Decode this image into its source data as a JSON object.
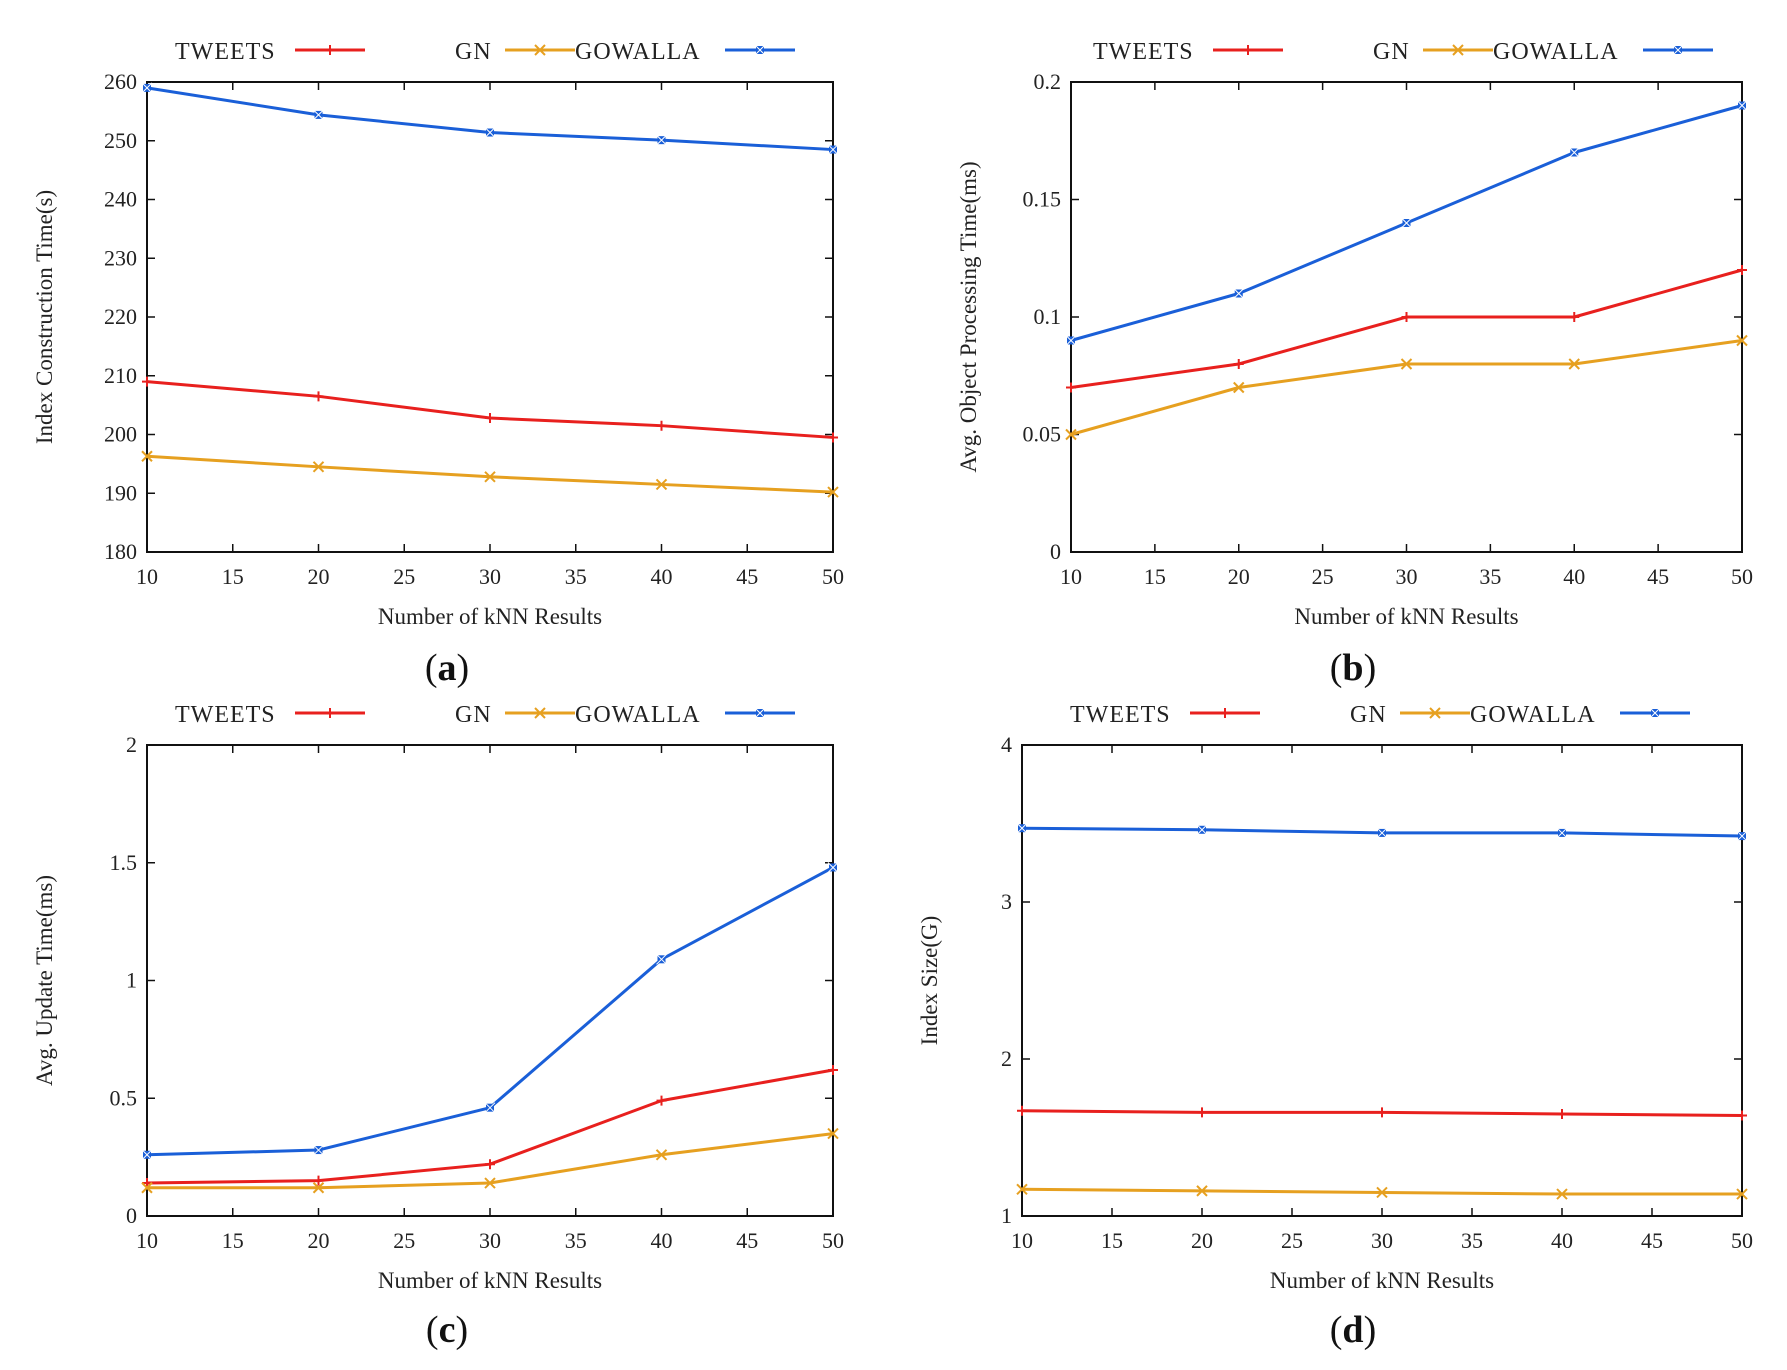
{
  "colors": {
    "TWEETS": "#e8201e",
    "GN": "#e6a020",
    "GOWALLA": "#1a5fd8"
  },
  "chart_data": [
    {
      "type": "line",
      "panel": "a",
      "xlabel": "Number of kNN Results",
      "ylabel": "Index Construction Time(s)",
      "x": [
        10,
        20,
        30,
        40,
        50
      ],
      "xlim": [
        10,
        50
      ],
      "xticks": [
        10,
        15,
        20,
        25,
        30,
        35,
        40,
        45,
        50
      ],
      "xtick_labels": [
        "10",
        "15",
        "20",
        "25",
        "30",
        "35",
        "40",
        "45",
        "50"
      ],
      "ylim": [
        180,
        260
      ],
      "yticks": [
        180,
        190,
        200,
        210,
        220,
        230,
        240,
        250,
        260
      ],
      "ytick_labels": [
        "180",
        "190",
        "200",
        "210",
        "220",
        "230",
        "240",
        "250",
        "260"
      ],
      "legend": "top-outside",
      "series": [
        {
          "name": "TWEETS",
          "values": [
            209,
            206.5,
            202.8,
            201.5,
            199.5
          ]
        },
        {
          "name": "GN",
          "values": [
            196.3,
            194.5,
            192.8,
            191.5,
            190.2
          ]
        },
        {
          "name": "GOWALLA",
          "values": [
            259,
            254.4,
            251.4,
            250.1,
            248.5
          ]
        }
      ]
    },
    {
      "type": "line",
      "panel": "b",
      "xlabel": "Number of kNN Results",
      "ylabel": "Avg. Object Processing Time(ms)",
      "x": [
        10,
        20,
        30,
        40,
        50
      ],
      "xlim": [
        10,
        50
      ],
      "xticks": [
        10,
        15,
        20,
        25,
        30,
        35,
        40,
        45,
        50
      ],
      "xtick_labels": [
        "10",
        "15",
        "20",
        "25",
        "30",
        "35",
        "40",
        "45",
        "50"
      ],
      "ylim": [
        0,
        0.2
      ],
      "yticks": [
        0,
        0.05,
        0.1,
        0.15,
        0.2
      ],
      "ytick_labels": [
        "0",
        "0.05",
        "0.1",
        "0.15",
        "0.2"
      ],
      "legend": "top-outside",
      "series": [
        {
          "name": "TWEETS",
          "values": [
            0.07,
            0.08,
            0.1,
            0.1,
            0.12
          ]
        },
        {
          "name": "GN",
          "values": [
            0.05,
            0.07,
            0.08,
            0.08,
            0.09
          ]
        },
        {
          "name": "GOWALLA",
          "values": [
            0.09,
            0.11,
            0.14,
            0.17,
            0.19
          ]
        }
      ]
    },
    {
      "type": "line",
      "panel": "c",
      "xlabel": "Number of kNN Results",
      "ylabel": "Avg. Update Time(ms)",
      "x": [
        10,
        20,
        30,
        40,
        50
      ],
      "xlim": [
        10,
        50
      ],
      "xticks": [
        10,
        15,
        20,
        25,
        30,
        35,
        40,
        45,
        50
      ],
      "xtick_labels": [
        "10",
        "15",
        "20",
        "25",
        "30",
        "35",
        "40",
        "45",
        "50"
      ],
      "ylim": [
        0,
        2
      ],
      "yticks": [
        0,
        0.5,
        1,
        1.5,
        2
      ],
      "ytick_labels": [
        "0",
        "0.5",
        "1",
        "1.5",
        "2"
      ],
      "legend": "top-outside",
      "series": [
        {
          "name": "TWEETS",
          "values": [
            0.14,
            0.15,
            0.22,
            0.49,
            0.62
          ]
        },
        {
          "name": "GN",
          "values": [
            0.12,
            0.12,
            0.14,
            0.26,
            0.35
          ]
        },
        {
          "name": "GOWALLA",
          "values": [
            0.26,
            0.28,
            0.46,
            1.09,
            1.48
          ]
        }
      ]
    },
    {
      "type": "line",
      "panel": "d",
      "xlabel": "Number of kNN Results",
      "ylabel": "Index Size(G)",
      "x": [
        10,
        20,
        30,
        40,
        50
      ],
      "xlim": [
        10,
        50
      ],
      "xticks": [
        10,
        15,
        20,
        25,
        30,
        35,
        40,
        45,
        50
      ],
      "xtick_labels": [
        "10",
        "15",
        "20",
        "25",
        "30",
        "35",
        "40",
        "45",
        "50"
      ],
      "ylim": [
        1,
        4
      ],
      "yticks": [
        1,
        2,
        3,
        4
      ],
      "ytick_labels": [
        "1",
        "2",
        "3",
        "4"
      ],
      "legend": "top-outside",
      "series": [
        {
          "name": "TWEETS",
          "values": [
            1.67,
            1.66,
            1.66,
            1.65,
            1.64
          ]
        },
        {
          "name": "GN",
          "values": [
            1.17,
            1.16,
            1.15,
            1.14,
            1.14
          ]
        },
        {
          "name": "GOWALLA",
          "values": [
            3.47,
            3.46,
            3.44,
            3.44,
            3.42
          ]
        }
      ]
    }
  ],
  "panel_labels": [
    {
      "open": "(",
      "letter": "a",
      "close": ")"
    },
    {
      "open": "(",
      "letter": "b",
      "close": ")"
    },
    {
      "open": "(",
      "letter": "c",
      "close": ")"
    },
    {
      "open": "(",
      "letter": "d",
      "close": ")"
    }
  ]
}
